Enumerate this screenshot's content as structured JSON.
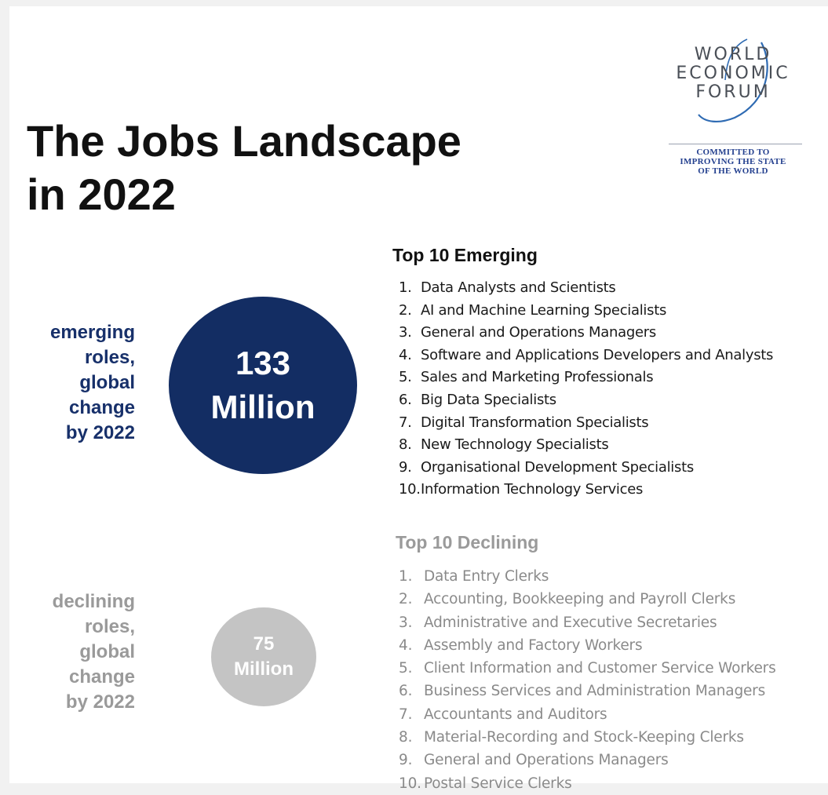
{
  "title": {
    "line1": "The Jobs Landscape",
    "line2": "in 2022"
  },
  "logo": {
    "line1": "WORLD",
    "line2": "ECONOMIC",
    "line3": "FORUM",
    "tagline1": "COMMITTED TO",
    "tagline2": "IMPROVING THE STATE",
    "tagline3": "OF THE WORLD",
    "color": "#2f6bb3"
  },
  "emerging": {
    "label_lines": [
      "emerging",
      "roles,",
      "global",
      "change",
      "by 2022"
    ],
    "value_line1": "133",
    "value_line2": "Million",
    "color": "#132d63",
    "list_title": "Top 10 Emerging",
    "items": [
      {
        "num": "1.",
        "text": "Data Analysts and Scientists"
      },
      {
        "num": "2.",
        "text": "AI and Machine Learning Specialists"
      },
      {
        "num": "3.",
        "text": "General and Operations Managers"
      },
      {
        "num": "4.",
        "text": "Software and Applications Developers and Analysts"
      },
      {
        "num": "5.",
        "text": "Sales and Marketing Professionals"
      },
      {
        "num": "6.",
        "text": "Big Data Specialists"
      },
      {
        "num": "7.",
        "text": "Digital Transformation Specialists"
      },
      {
        "num": "8.",
        "text": "New Technology Specialists"
      },
      {
        "num": "9.",
        "text": "Organisational Development Specialists"
      },
      {
        "num": "10.",
        "text": "Information Technology Services"
      }
    ]
  },
  "declining": {
    "label_lines": [
      "declining",
      "roles,",
      "global",
      "change",
      "by 2022"
    ],
    "value_line1": "75",
    "value_line2": "Million",
    "color": "#c4c4c4",
    "list_title": "Top 10 Declining",
    "items": [
      {
        "num": "1.",
        "text": "Data Entry Clerks"
      },
      {
        "num": "2.",
        "text": "Accounting,  Bookkeeping and Payroll Clerks"
      },
      {
        "num": "3.",
        "text": "Administrative and Executive Secretaries"
      },
      {
        "num": "4.",
        "text": "Assembly and Factory Workers"
      },
      {
        "num": "5.",
        "text": "Client Information and Customer Service Workers"
      },
      {
        "num": "6.",
        "text": "Business Services and Administration Managers"
      },
      {
        "num": "7.",
        "text": "Accountants and Auditors"
      },
      {
        "num": "8.",
        "text": "Material-Recording and Stock-Keeping Clerks"
      },
      {
        "num": "9.",
        "text": "General and Operations Managers"
      },
      {
        "num": "10.",
        "text": "Postal Service Clerks"
      }
    ]
  }
}
